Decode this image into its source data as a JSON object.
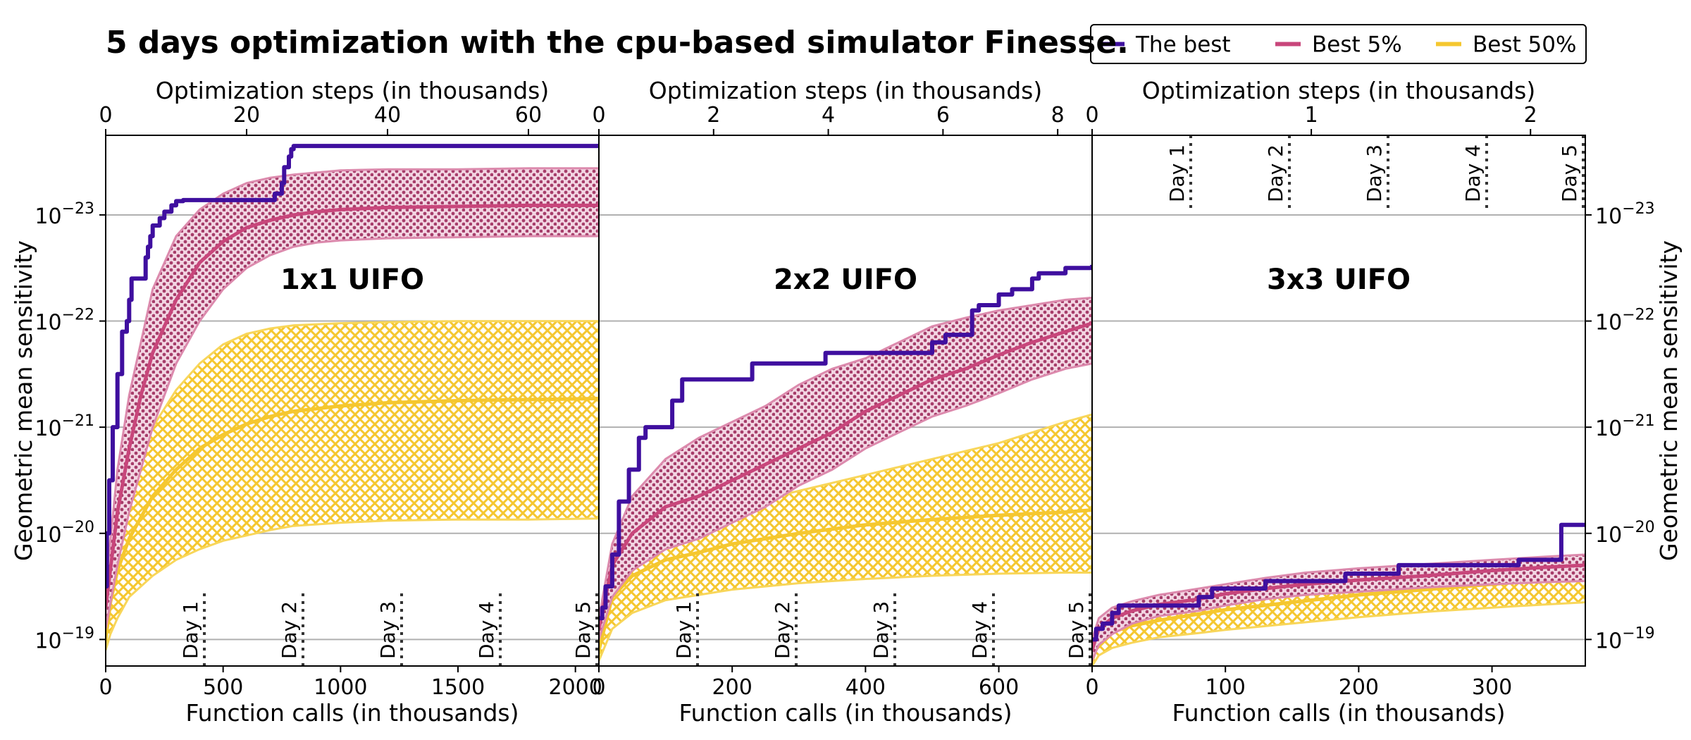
{
  "figure": {
    "title": "5 days optimization with the cpu-based simulator Finesse.",
    "legend": [
      {
        "label": "The best",
        "color": "#3f0f9f"
      },
      {
        "label": "Best 5%",
        "color": "#c8467b"
      },
      {
        "label": "Best 50%",
        "color": "#f5c72f"
      }
    ]
  },
  "colors": {
    "best": "#3f0f9f",
    "top5_line": "#c8467b",
    "top5_band_edge": "#dc8aad",
    "top50_line": "#f5c72f",
    "top50_band_edge": "#f8d65a",
    "grid": "#b0b0b0",
    "day_line": "#333333"
  },
  "chart_data": [
    {
      "type": "line",
      "title": "1x1 UIFO",
      "xlabel": "Function calls (in thousands)",
      "x2label": "Optimization steps (in thousands)",
      "ylabel": "Geometric mean sensitivity",
      "ylim_exponent": [
        -18.75,
        -23.75
      ],
      "y_scale": "log, inverted",
      "xlim": [
        0,
        2100
      ],
      "xticks": [
        0,
        500,
        1000,
        1500,
        2000
      ],
      "xtick_labels": [
        "0",
        "500",
        "1000",
        "1500",
        "2000"
      ],
      "x2lim": [
        0,
        70
      ],
      "x2ticks": [
        0,
        20,
        40,
        60
      ],
      "x2tick_labels": [
        "0",
        "20",
        "40",
        "60"
      ],
      "yticks": [
        -19,
        -20,
        -21,
        -22,
        -23
      ],
      "ytick_labels": [
        "10",
        "10",
        "10",
        "10",
        "10"
      ],
      "ytick_exponents": [
        "−19",
        "−20",
        "−21",
        "−22",
        "−23"
      ],
      "ytick_side": "left",
      "days": {
        "labels": [
          "Day 1",
          "Day 2",
          "Day 3",
          "Day 4",
          "Day 5"
        ],
        "x": [
          420,
          840,
          1260,
          1680,
          2100
        ],
        "placement": "bottom"
      },
      "series": [
        {
          "name": "The best",
          "x": [
            0,
            5,
            15,
            30,
            50,
            70,
            90,
            100,
            110,
            160,
            170,
            180,
            190,
            200,
            230,
            250,
            280,
            300,
            330,
            700,
            720,
            750,
            760,
            780,
            790,
            800,
            2100
          ],
          "y": [
            -19.5,
            -20.0,
            -20.5,
            -21.0,
            -21.5,
            -21.9,
            -22.0,
            -22.2,
            -22.4,
            -22.4,
            -22.6,
            -22.7,
            -22.8,
            -22.9,
            -22.97,
            -23.03,
            -23.09,
            -23.13,
            -23.14,
            -23.14,
            -23.2,
            -23.3,
            -23.45,
            -23.55,
            -23.62,
            -23.65,
            -23.67
          ]
        },
        {
          "name": "Best 5%",
          "x": [
            0,
            50,
            100,
            150,
            200,
            300,
            400,
            500,
            600,
            700,
            800,
            900,
            1000,
            1200,
            1500,
            1800,
            2100
          ],
          "y": [
            -19.3,
            -20.2,
            -20.8,
            -21.3,
            -21.7,
            -22.2,
            -22.55,
            -22.75,
            -22.88,
            -22.95,
            -23.0,
            -23.03,
            -23.05,
            -23.07,
            -23.08,
            -23.09,
            -23.09
          ],
          "y_low": [
            -19.1,
            -19.7,
            -20.2,
            -20.6,
            -21.0,
            -21.6,
            -22.0,
            -22.3,
            -22.5,
            -22.62,
            -22.7,
            -22.74,
            -22.76,
            -22.78,
            -22.79,
            -22.8,
            -22.8
          ],
          "y_high": [
            -19.5,
            -20.6,
            -21.3,
            -21.8,
            -22.3,
            -22.8,
            -23.05,
            -23.2,
            -23.3,
            -23.35,
            -23.38,
            -23.4,
            -23.42,
            -23.43,
            -23.43,
            -23.44,
            -23.44
          ]
        },
        {
          "name": "Best 50%",
          "x": [
            0,
            20,
            50,
            100,
            200,
            300,
            400,
            500,
            600,
            700,
            800,
            1000,
            1200,
            1500,
            1800,
            2100
          ],
          "y": [
            -19.0,
            -19.35,
            -19.65,
            -19.95,
            -20.35,
            -20.6,
            -20.8,
            -20.93,
            -21.03,
            -21.1,
            -21.15,
            -21.2,
            -21.23,
            -21.25,
            -21.26,
            -21.27
          ],
          "y_low": [
            -18.9,
            -19.05,
            -19.2,
            -19.4,
            -19.6,
            -19.75,
            -19.85,
            -19.93,
            -19.98,
            -20.03,
            -20.07,
            -20.1,
            -20.12,
            -20.13,
            -20.13,
            -20.14
          ],
          "y_high": [
            -19.2,
            -19.7,
            -20.1,
            -20.5,
            -21.0,
            -21.35,
            -21.6,
            -21.78,
            -21.88,
            -21.93,
            -21.96,
            -21.98,
            -21.99,
            -22.0,
            -22.0,
            -22.0
          ]
        }
      ]
    },
    {
      "type": "line",
      "title": "2x2 UIFO",
      "xlabel": "Function calls (in thousands)",
      "x2label": "Optimization steps (in thousands)",
      "xlim": [
        0,
        740
      ],
      "xticks": [
        0,
        200,
        400,
        600
      ],
      "xtick_labels": [
        "0",
        "200",
        "400",
        "600"
      ],
      "x2lim": [
        0,
        8.6
      ],
      "x2ticks": [
        0,
        2,
        4,
        6,
        8
      ],
      "x2tick_labels": [
        "0",
        "2",
        "4",
        "6",
        "8"
      ],
      "ylim_exponent": [
        -18.75,
        -23.75
      ],
      "days": {
        "labels": [
          "Day 1",
          "Day 2",
          "Day 3",
          "Day 4",
          "Day 5"
        ],
        "x": [
          148,
          296,
          444,
          592,
          740
        ],
        "placement": "bottom"
      },
      "series": [
        {
          "name": "The best",
          "x": [
            0,
            5,
            10,
            20,
            30,
            45,
            60,
            70,
            110,
            125,
            190,
            230,
            340,
            470,
            500,
            520,
            550,
            560,
            570,
            600,
            620,
            650,
            660,
            700,
            740
          ],
          "y": [
            -19.2,
            -19.3,
            -19.5,
            -19.8,
            -20.3,
            -20.6,
            -20.9,
            -21.0,
            -21.25,
            -21.45,
            -21.45,
            -21.6,
            -21.7,
            -21.7,
            -21.8,
            -21.87,
            -21.87,
            -22.1,
            -22.15,
            -22.25,
            -22.3,
            -22.4,
            -22.45,
            -22.5,
            -22.53
          ]
        },
        {
          "name": "Best 5%",
          "x": [
            0,
            20,
            50,
            100,
            150,
            200,
            250,
            300,
            350,
            400,
            450,
            500,
            550,
            600,
            650,
            700,
            740
          ],
          "y": [
            -19.1,
            -19.7,
            -20.0,
            -20.25,
            -20.35,
            -20.5,
            -20.65,
            -20.8,
            -20.95,
            -21.15,
            -21.3,
            -21.45,
            -21.55,
            -21.68,
            -21.8,
            -21.9,
            -21.98
          ],
          "y_low": [
            -19.0,
            -19.4,
            -19.65,
            -19.85,
            -19.95,
            -20.1,
            -20.25,
            -20.45,
            -20.6,
            -20.8,
            -20.95,
            -21.1,
            -21.2,
            -21.32,
            -21.45,
            -21.55,
            -21.6
          ],
          "y_high": [
            -19.2,
            -19.9,
            -20.35,
            -20.7,
            -20.9,
            -21.05,
            -21.2,
            -21.4,
            -21.55,
            -21.65,
            -21.8,
            -21.95,
            -22.03,
            -22.1,
            -22.15,
            -22.2,
            -22.22
          ]
        },
        {
          "name": "Best 50%",
          "x": [
            0,
            20,
            50,
            100,
            150,
            200,
            300,
            400,
            500,
            600,
            700,
            740
          ],
          "y": [
            -18.9,
            -19.4,
            -19.6,
            -19.75,
            -19.82,
            -19.9,
            -20.0,
            -20.08,
            -20.13,
            -20.17,
            -20.2,
            -20.22
          ],
          "y_low": [
            -18.8,
            -19.1,
            -19.25,
            -19.37,
            -19.42,
            -19.47,
            -19.53,
            -19.57,
            -19.6,
            -19.62,
            -19.63,
            -19.63
          ],
          "y_high": [
            -19.0,
            -19.7,
            -19.85,
            -20.05,
            -20.15,
            -20.25,
            -20.4,
            -20.55,
            -20.7,
            -20.85,
            -21.05,
            -21.12
          ]
        }
      ]
    },
    {
      "type": "line",
      "title": "3x3 UIFO",
      "xlabel": "Function calls (in thousands)",
      "x2label": "Optimization steps (in thousands)",
      "ylabel": "Geometric mean sensitivity",
      "xlim": [
        0,
        370
      ],
      "xticks": [
        0,
        100,
        200,
        300
      ],
      "xtick_labels": [
        "0",
        "100",
        "200",
        "300"
      ],
      "x2lim": [
        0,
        2.25
      ],
      "x2ticks": [
        0,
        1,
        2
      ],
      "x2tick_labels": [
        "0",
        "1",
        "2"
      ],
      "ylim_exponent": [
        -18.75,
        -23.75
      ],
      "yticks": [
        -19,
        -20,
        -21,
        -22,
        -23
      ],
      "ytick_labels": [
        "10",
        "10",
        "10",
        "10",
        "10"
      ],
      "ytick_exponents": [
        "−19",
        "−20",
        "−21",
        "−22",
        "−23"
      ],
      "ytick_side": "right",
      "days": {
        "labels": [
          "Day 1",
          "Day 2",
          "Day 3",
          "Day 4",
          "Day 5"
        ],
        "x": [
          74,
          148,
          222,
          296,
          370
        ],
        "placement": "top"
      },
      "series": [
        {
          "name": "The best",
          "x": [
            0,
            3,
            8,
            15,
            20,
            50,
            80,
            90,
            130,
            190,
            230,
            320,
            350,
            352,
            370
          ],
          "y": [
            -19.0,
            -19.1,
            -19.15,
            -19.25,
            -19.32,
            -19.32,
            -19.4,
            -19.48,
            -19.55,
            -19.62,
            -19.7,
            -19.75,
            -19.75,
            -20.08,
            -20.1
          ]
        },
        {
          "name": "Best 5%",
          "x": [
            0,
            5,
            15,
            30,
            50,
            80,
            100,
            130,
            160,
            200,
            250,
            300,
            340,
            370
          ],
          "y": [
            -18.9,
            -19.1,
            -19.2,
            -19.27,
            -19.33,
            -19.38,
            -19.43,
            -19.48,
            -19.52,
            -19.56,
            -19.6,
            -19.65,
            -19.68,
            -19.7
          ],
          "y_low": [
            -18.8,
            -18.95,
            -19.05,
            -19.15,
            -19.22,
            -19.27,
            -19.32,
            -19.38,
            -19.42,
            -19.45,
            -19.49,
            -19.52,
            -19.54,
            -19.55
          ],
          "y_high": [
            -19.0,
            -19.2,
            -19.3,
            -19.36,
            -19.42,
            -19.48,
            -19.52,
            -19.58,
            -19.63,
            -19.67,
            -19.71,
            -19.75,
            -19.78,
            -19.8
          ]
        },
        {
          "name": "Best 50%",
          "x": [
            0,
            5,
            15,
            30,
            50,
            80,
            100,
            150,
            200,
            250,
            300,
            340,
            370
          ],
          "y": [
            -18.8,
            -19.0,
            -19.07,
            -19.13,
            -19.18,
            -19.24,
            -19.28,
            -19.35,
            -19.42,
            -19.47,
            -19.52,
            -19.56,
            -19.57
          ],
          "y_low": [
            -18.75,
            -18.85,
            -18.92,
            -18.97,
            -19.02,
            -19.06,
            -19.09,
            -19.15,
            -19.21,
            -19.26,
            -19.3,
            -19.33,
            -19.35
          ],
          "y_high": [
            -18.85,
            -19.1,
            -19.18,
            -19.24,
            -19.3,
            -19.37,
            -19.42,
            -19.5,
            -19.57,
            -19.63,
            -19.69,
            -19.73,
            -19.75
          ]
        }
      ]
    }
  ]
}
